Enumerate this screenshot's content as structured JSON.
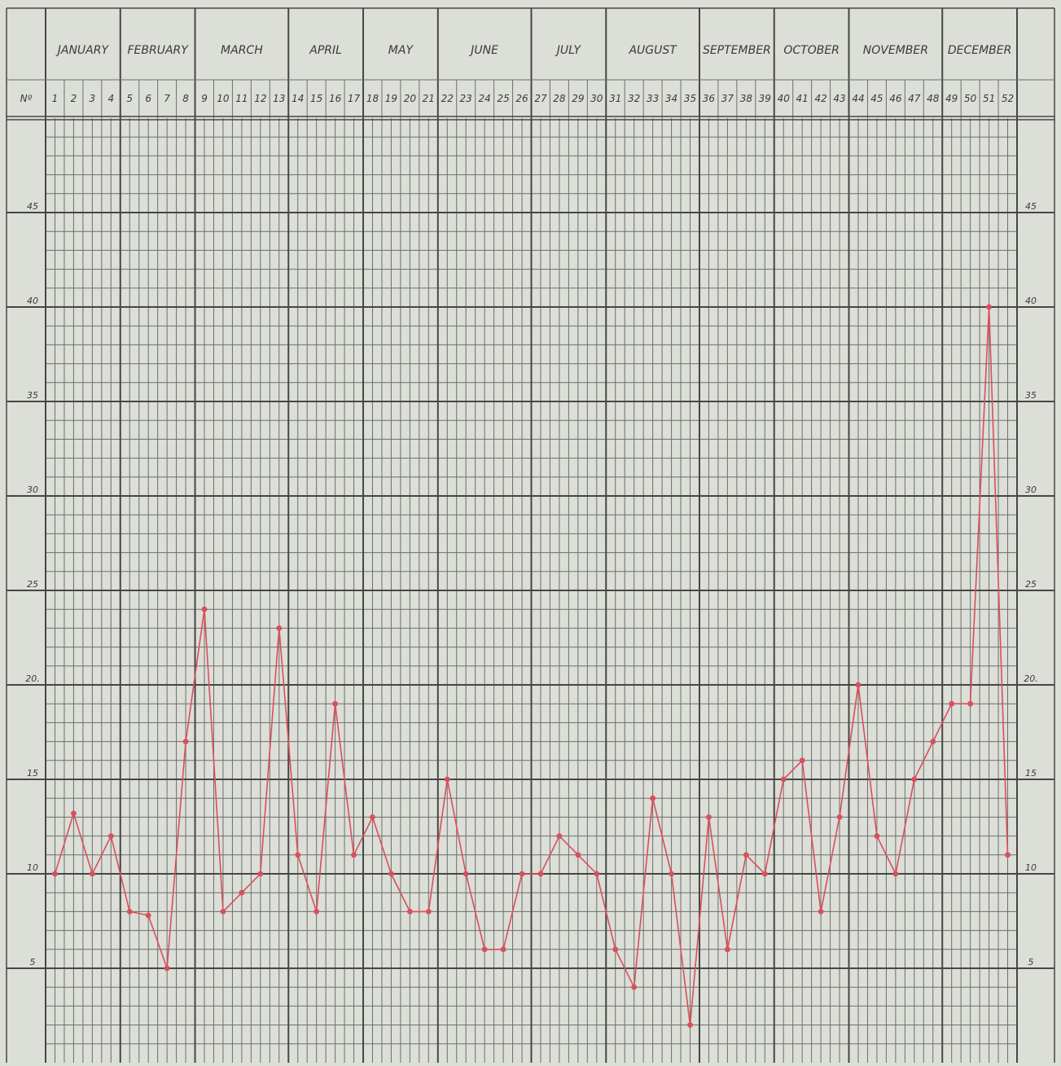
{
  "chart_data": {
    "type": "line",
    "header_label": "Nº",
    "months": [
      {
        "label": "JANUARY",
        "weeks": 4
      },
      {
        "label": "FEBRUARY",
        "weeks": 4
      },
      {
        "label": "MARCH",
        "weeks": 5
      },
      {
        "label": "APRIL",
        "weeks": 4
      },
      {
        "label": "MAY",
        "weeks": 4
      },
      {
        "label": "JUNE",
        "weeks": 5
      },
      {
        "label": "JULY",
        "weeks": 4
      },
      {
        "label": "AUGUST",
        "weeks": 5
      },
      {
        "label": "SEPTEMBER",
        "weeks": 4
      },
      {
        "label": "OCTOBER",
        "weeks": 4
      },
      {
        "label": "NOVEMBER",
        "weeks": 5
      },
      {
        "label": "DECEMBER",
        "weeks": 4
      }
    ],
    "weeks": [
      "1",
      "2",
      "3",
      "4",
      "5",
      "6",
      "7",
      "8",
      "9",
      "10",
      "11",
      "12",
      "13",
      "14",
      "15",
      "16",
      "17",
      "18",
      "19",
      "20",
      "21",
      "22",
      "23",
      "24",
      "25",
      "26",
      "27",
      "28",
      "29",
      "30",
      "31",
      "32",
      "33",
      "34",
      "35",
      "36",
      "37",
      "38",
      "39",
      "40",
      "41",
      "42",
      "43",
      "44",
      "45",
      "46",
      "47",
      "48",
      "49",
      "50",
      "51",
      "52"
    ],
    "series": [
      {
        "values": [
          10,
          13.2,
          10,
          12,
          8,
          7.8,
          5,
          17,
          24,
          8,
          9,
          10,
          23,
          11,
          8,
          19,
          11,
          13,
          10,
          8,
          8,
          15,
          10,
          6,
          6,
          10,
          10,
          12,
          11,
          10,
          6,
          4,
          14,
          10,
          2,
          13,
          6,
          11,
          10,
          15,
          16,
          8,
          13,
          20,
          12,
          10,
          15,
          17,
          19,
          19,
          40,
          11
        ]
      }
    ],
    "y_ticks": [
      5,
      10,
      15,
      20,
      25,
      30,
      35,
      40,
      45
    ],
    "y_tick_labels": [
      "5",
      "10",
      "15",
      "20.",
      "25",
      "30",
      "35",
      "40",
      "45"
    ],
    "ylim": [
      0,
      50
    ],
    "grid": true,
    "colors": {
      "line": "#d94f5c",
      "grid_minor": "#6d6e6b",
      "grid_major": "#464744",
      "paper": "#dcded8"
    }
  }
}
